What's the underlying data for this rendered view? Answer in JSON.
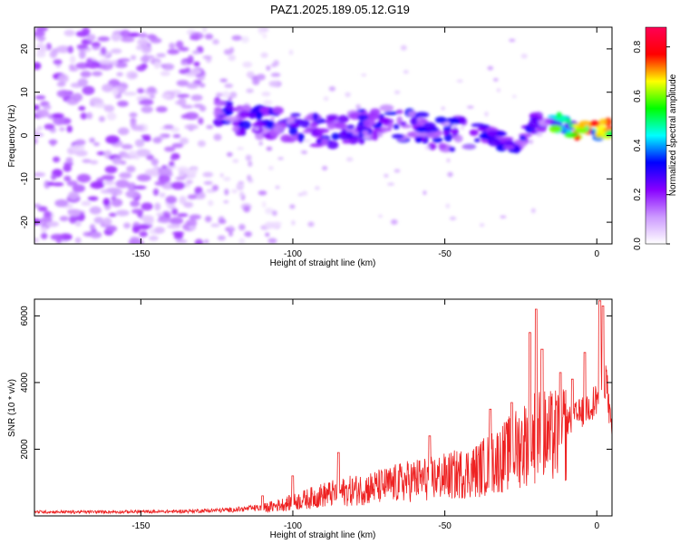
{
  "title": "PAZ1.2025.189.05.12.G19",
  "chart_data": [
    {
      "type": "heatmap",
      "xlabel": "Height of straight line (km)",
      "ylabel": "Frequency (Hz)",
      "xlim": [
        -185,
        5
      ],
      "ylim": [
        -25,
        25
      ],
      "x_ticks": [
        -150,
        -100,
        -50,
        0
      ],
      "y_ticks": [
        -20,
        -10,
        0,
        10,
        20
      ],
      "colorbar": {
        "label": "Normalized spectral amplitude",
        "range": [
          0,
          0.88
        ],
        "ticks": [
          "0.0",
          "0.2",
          "0.4",
          "0.6",
          "0.8"
        ],
        "colors": [
          "#ffffff",
          "#cc99ff",
          "#8800ff",
          "#0000ff",
          "#00ffff",
          "#00ff00",
          "#ffff00",
          "#ff0000",
          "#ff0055"
        ]
      },
      "ridge": {
        "x": [
          -125,
          -110,
          -100,
          -90,
          -80,
          -70,
          -60,
          -50,
          -40,
          -30,
          -25,
          -20,
          -15,
          -10,
          -5,
          0,
          5
        ],
        "y": [
          5,
          3,
          2,
          1,
          2,
          3,
          2,
          0,
          1,
          -2,
          -1,
          3,
          4,
          2,
          1,
          1,
          2
        ]
      }
    },
    {
      "type": "line",
      "xlabel": "Height of straight line (km)",
      "ylabel": "SNR (10 * v/v)",
      "xlim": [
        -185,
        5
      ],
      "ylim": [
        0,
        6500
      ],
      "x_ticks": [
        -150,
        -100,
        -50,
        0
      ],
      "y_ticks": [
        2000,
        4000,
        6000
      ],
      "series": [
        {
          "color": "#ee2222",
          "x": [
            -185,
            -160,
            -140,
            -120,
            -110,
            -100,
            -90,
            -80,
            -70,
            -60,
            -50,
            -40,
            -30,
            -20,
            -15,
            -10,
            -5,
            0,
            3,
            5
          ],
          "y": [
            120,
            120,
            130,
            180,
            250,
            450,
            700,
            850,
            1000,
            1200,
            1300,
            1500,
            2000,
            2700,
            2600,
            2800,
            3100,
            3500,
            4200,
            2300
          ]
        }
      ],
      "peaks": {
        "x": [
          -110,
          -100,
          -85,
          -55,
          -35,
          -28,
          -22,
          -20,
          -18,
          -12,
          -8,
          -4,
          1,
          2
        ],
        "y": [
          600,
          1200,
          1900,
          2400,
          3200,
          3400,
          5500,
          6200,
          5000,
          4300,
          4100,
          4900,
          6450,
          6300
        ]
      }
    }
  ]
}
